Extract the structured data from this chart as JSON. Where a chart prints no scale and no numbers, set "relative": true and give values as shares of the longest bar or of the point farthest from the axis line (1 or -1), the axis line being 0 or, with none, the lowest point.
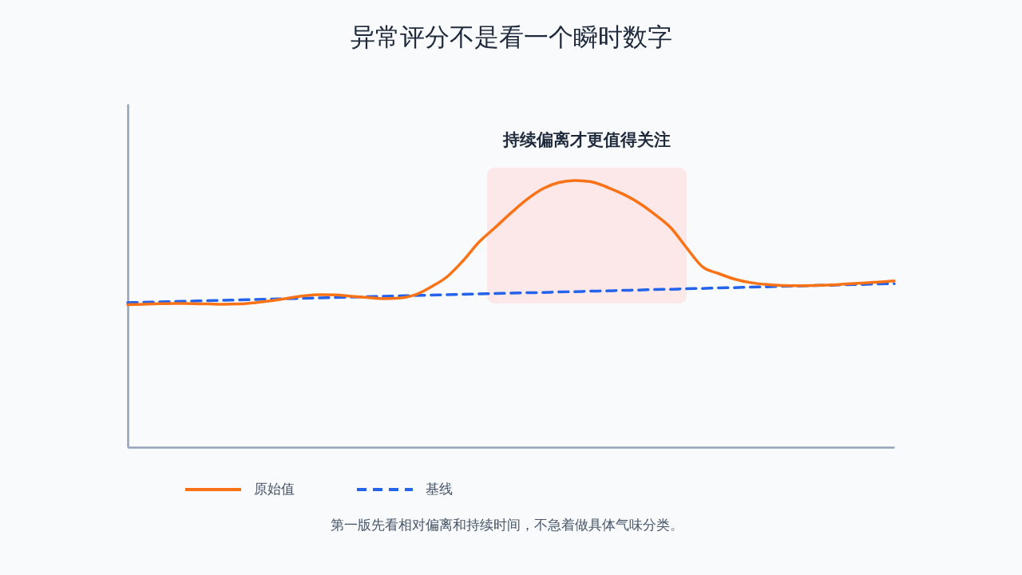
{
  "chart_data": {
    "type": "line",
    "title": "异常评分不是看一个瞬时数字",
    "relative": true,
    "legend": "bottom",
    "categories": [
      null,
      null,
      null,
      null,
      null,
      null,
      null,
      null,
      null,
      null,
      null,
      null,
      null,
      null,
      null,
      null,
      null,
      null,
      null,
      null,
      null,
      null,
      null,
      null,
      null,
      null,
      null,
      null,
      null,
      null,
      null,
      null,
      null,
      null,
      null,
      null,
      null,
      null,
      null,
      null,
      null,
      null,
      null,
      null,
      null,
      null,
      null,
      null,
      null
    ],
    "series": [
      {
        "name": "原始值",
        "color": "#f97316",
        "line_style": "solid",
        "values": [
          0.534,
          0.536,
          0.538,
          0.539,
          0.538,
          0.537,
          0.536,
          0.537,
          0.542,
          0.549,
          0.558,
          0.567,
          0.572,
          0.571,
          0.566,
          0.561,
          0.557,
          0.559,
          0.571,
          0.601,
          0.639,
          0.699,
          0.769,
          0.823,
          0.878,
          0.929,
          0.969,
          0.992,
          1.0,
          0.995,
          0.975,
          0.949,
          0.916,
          0.873,
          0.823,
          0.747,
          0.676,
          0.651,
          0.63,
          0.617,
          0.61,
          0.606,
          0.605,
          0.606,
          0.608,
          0.612,
          0.615,
          0.619,
          0.623
        ]
      },
      {
        "name": "基线",
        "color": "#2563eb",
        "line_style": "dashed",
        "values": [
          0.542,
          0.543,
          0.545,
          0.546,
          0.548,
          0.549,
          0.551,
          0.552,
          0.554,
          0.555,
          0.557,
          0.558,
          0.56,
          0.561,
          0.563,
          0.564,
          0.566,
          0.567,
          0.569,
          0.57,
          0.572,
          0.573,
          0.575,
          0.576,
          0.578,
          0.579,
          0.58,
          0.582,
          0.583,
          0.585,
          0.586,
          0.588,
          0.589,
          0.591,
          0.592,
          0.594,
          0.595,
          0.597,
          0.598,
          0.6,
          0.601,
          0.603,
          0.604,
          0.606,
          0.607,
          0.609,
          0.61,
          0.612,
          0.613
        ]
      }
    ],
    "annotations": [
      "持续偏离才更值得关注",
      "第一版先看相对偏离和持续时间，不急着做具体气味分类。"
    ]
  }
}
